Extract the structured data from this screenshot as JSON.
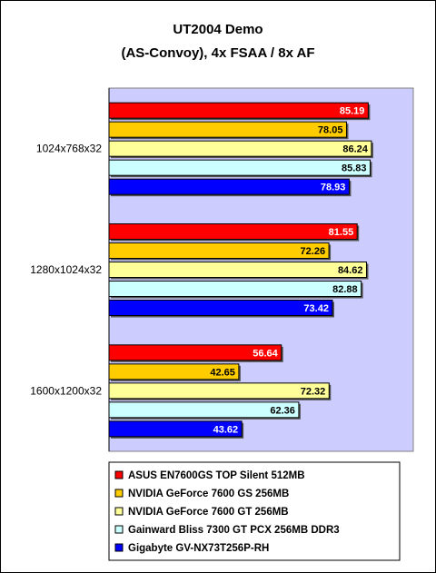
{
  "chart_data": {
    "type": "bar",
    "orientation": "horizontal",
    "title": [
      "UT2004 Demo",
      "(AS-Convoy), 4x FSAA / 8x AF"
    ],
    "categories": [
      "1024x768x32",
      "1280x1024x32",
      "1600x1200x32"
    ],
    "xlim": [
      0,
      100
    ],
    "grid": false,
    "plot_background": "#ccccff",
    "legend_position": "bottom",
    "series": [
      {
        "name": "ASUS EN7600GS TOP Silent 512MB",
        "color": "#ff0000",
        "label_color": "#ffffff",
        "values": [
          85.19,
          81.55,
          56.64
        ]
      },
      {
        "name": "NVIDIA GeForce 7600 GS 256MB",
        "color": "#ffcc00",
        "label_color": "#000000",
        "values": [
          78.05,
          72.26,
          42.65
        ]
      },
      {
        "name": "NVIDIA GeForce 7600 GT 256MB",
        "color": "#ffff99",
        "label_color": "#000000",
        "values": [
          86.24,
          84.62,
          72.32
        ]
      },
      {
        "name": "Gainward Bliss 7300 GT PCX 256MB DDR3",
        "color": "#ccffff",
        "label_color": "#000000",
        "values": [
          85.83,
          82.88,
          62.36
        ]
      },
      {
        "name": "Gigabyte GV-NX73T256P-RH",
        "color": "#0000ff",
        "label_color": "#ffffff",
        "values": [
          78.93,
          73.42,
          43.62
        ]
      }
    ]
  }
}
